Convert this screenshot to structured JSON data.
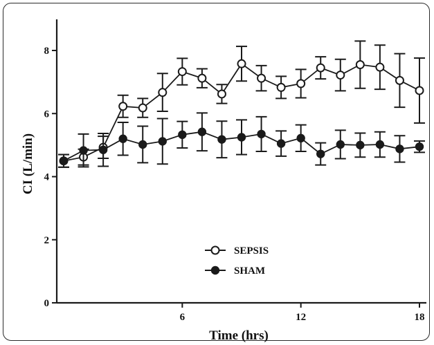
{
  "chart_data": {
    "type": "line",
    "xlabel": "Time (hrs)",
    "ylabel": "CI (L/min)",
    "xlim": [
      0,
      18.4
    ],
    "ylim": [
      0,
      9
    ],
    "xticks": [
      6,
      12,
      18
    ],
    "yticks": [
      0,
      2,
      4,
      6,
      8
    ],
    "legend_position": "bottom-center",
    "series": [
      {
        "name": "SEPSIS",
        "marker": "open-circle",
        "x": [
          0,
          1,
          2,
          3,
          4,
          5,
          6,
          7,
          8,
          9,
          10,
          11,
          12,
          13,
          14,
          15,
          16,
          17,
          18
        ],
        "y": [
          4.5,
          4.62,
          4.93,
          6.23,
          6.18,
          6.67,
          7.33,
          7.12,
          6.62,
          7.58,
          7.12,
          6.83,
          6.95,
          7.45,
          7.22,
          7.55,
          7.47,
          7.05,
          6.73
        ],
        "err": [
          0.2,
          0.25,
          0.35,
          0.35,
          0.3,
          0.6,
          0.42,
          0.3,
          0.3,
          0.55,
          0.4,
          0.35,
          0.45,
          0.35,
          0.5,
          0.75,
          0.7,
          0.85,
          1.03
        ]
      },
      {
        "name": "SHAM",
        "marker": "filled-circle",
        "x": [
          0,
          1,
          2,
          3,
          4,
          5,
          6,
          7,
          8,
          9,
          10,
          11,
          12,
          13,
          14,
          15,
          16,
          17,
          18
        ],
        "y": [
          4.5,
          4.83,
          4.85,
          5.2,
          5.02,
          5.12,
          5.33,
          5.42,
          5.18,
          5.25,
          5.35,
          5.05,
          5.22,
          4.72,
          5.02,
          5.0,
          5.02,
          4.88,
          4.95
        ],
        "err": [
          0.2,
          0.52,
          0.52,
          0.52,
          0.58,
          0.72,
          0.42,
          0.6,
          0.58,
          0.55,
          0.55,
          0.4,
          0.42,
          0.35,
          0.45,
          0.38,
          0.4,
          0.42,
          0.18
        ]
      }
    ]
  },
  "colors": {
    "line": "#1a1a1a",
    "frame": "#2a2a2a"
  }
}
